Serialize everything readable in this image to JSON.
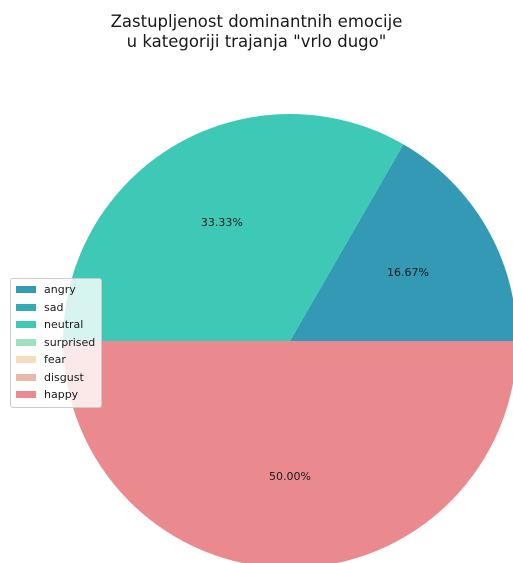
{
  "chart_data": {
    "type": "pie",
    "title": [
      "Zastupljenost dominantnih emocije",
      "u kategoriji trajanja \"vrlo dugo\""
    ],
    "categories": [
      "angry",
      "sad",
      "neutral",
      "surprised",
      "fear",
      "disgust",
      "happy"
    ],
    "values": [
      16.67,
      0,
      33.33,
      0,
      0,
      0,
      50.0
    ],
    "labels": [
      "16.67%",
      "",
      "33.33%",
      "",
      "",
      "",
      "50.00%"
    ],
    "colors": [
      "#3399b5",
      "#36aab4",
      "#3ec8b6",
      "#9fe0bf",
      "#f6ddbd",
      "#e9b8aa",
      "#ea8a8f"
    ],
    "legend_position": "center-left"
  }
}
